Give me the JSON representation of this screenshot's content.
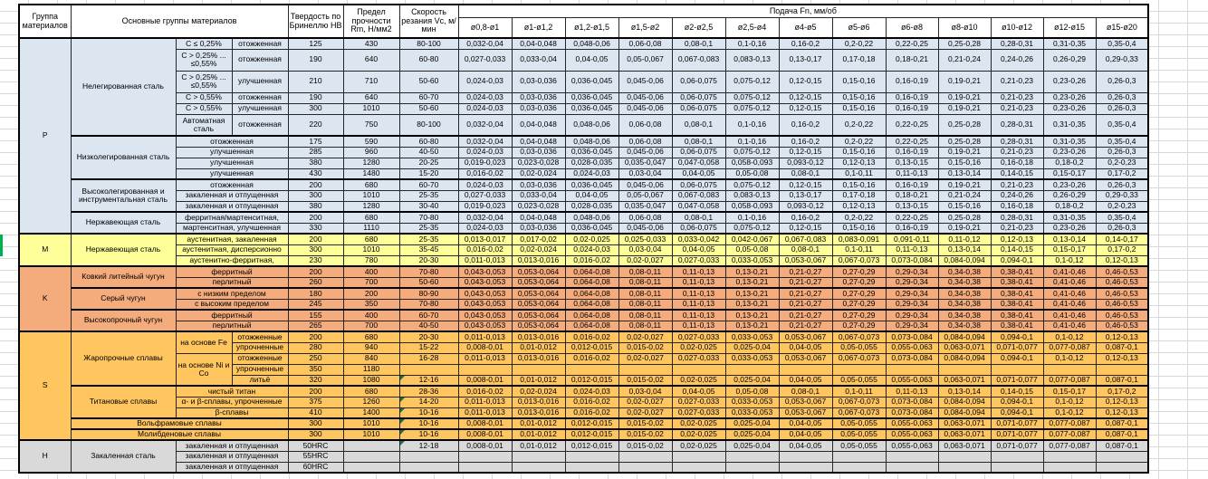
{
  "header": {
    "col_group": "Группа материалов",
    "col_main": "Основные группы материалов",
    "col_hardness": "Твердость по Бринеллю HB",
    "col_strength": "Предел прочности Rm, Н/мм2",
    "col_speed": "Скорость резания Vc, м/мин",
    "feed_title": "Подача Fn, мм/об",
    "feed_cols": [
      "ø0,8-ø1",
      "ø1-ø1,2",
      "ø1,2-ø1,5",
      "ø1,5-ø2",
      "ø2-ø2,5",
      "ø2,5-ø4",
      "ø4-ø5",
      "ø5-ø6",
      "ø6-ø8",
      "ø8-ø10",
      "ø10-ø12",
      "ø12-ø15",
      "ø15-ø20"
    ]
  },
  "colors": {
    "group_P": "#dce6f1",
    "group_M": "#ffff99",
    "group_K": "#f4ac7c",
    "group_S": "#ffc55f",
    "group_H": "#d9d9d9",
    "marker": "#1e7145",
    "indicator": "#00b050"
  },
  "feed_sets": {
    "A": [
      "0,032-0,04",
      "0,04-0,048",
      "0,048-0,06",
      "0,06-0,08",
      "0,08-0,1",
      "0,1-0,16",
      "0,16-0,2",
      "0,2-0,22",
      "0,22-0,25",
      "0,25-0,28",
      "0,28-0,31",
      "0,31-0,35",
      "0,35-0,4"
    ],
    "B": [
      "0,027-0,033",
      "0,033-0,04",
      "0,04-0,05",
      "0,05-0,067",
      "0,067-0,083",
      "0,083-0,13",
      "0,13-0,17",
      "0,17-0,18",
      "0,18-0,21",
      "0,21-0,24",
      "0,24-0,26",
      "0,26-0,29",
      "0,29-0,33"
    ],
    "C": [
      "0,024-0,03",
      "0,03-0,036",
      "0,036-0,045",
      "0,045-0,06",
      "0,06-0,075",
      "0,075-0,12",
      "0,12-0,15",
      "0,15-0,16",
      "0,16-0,19",
      "0,19-0,21",
      "0,21-0,23",
      "0,23-0,26",
      "0,26-0,3"
    ],
    "D": [
      "0,019-0,023",
      "0,023-0,028",
      "0,028-0,035",
      "0,035-0,047",
      "0,047-0,058",
      "0,058-0,093",
      "0,093-0,12",
      "0,12-0,13",
      "0,13-0,15",
      "0,15-0,16",
      "0,16-0,18",
      "0,18-0,2",
      "0,2-0,23"
    ],
    "E": [
      "0,016-0,02",
      "0,02-0,024",
      "0,024-0,03",
      "0,03-0,04",
      "0,04-0,05",
      "0,05-0,08",
      "0,08-0,1",
      "0,1-0,11",
      "0,11-0,13",
      "0,13-0,14",
      "0,14-0,15",
      "0,15-0,17",
      "0,17-0,2"
    ],
    "F": [
      "0,013-0,017",
      "0,017-0,02",
      "0,02-0,025",
      "0,025-0,033",
      "0,033-0,042",
      "0,042-0,067",
      "0,067-0,083",
      "0,083-0,091",
      "0,091-0,11",
      "0,11-0,12",
      "0,12-0,13",
      "0,13-0,14",
      "0,14-0,17"
    ],
    "G": [
      "0,011-0,013",
      "0,013-0,016",
      "0,016-0,02",
      "0,02-0,027",
      "0,027-0,033",
      "0,033-0,053",
      "0,053-0,067",
      "0,067-0,073",
      "0,073-0,084",
      "0,084-0,094",
      "0,094-0,1",
      "0,1-0,12",
      "0,12-0,13"
    ],
    "H": [
      "0,043-0,053",
      "0,053-0,064",
      "0,064-0,08",
      "0,08-0,11",
      "0,11-0,13",
      "0,13-0,21",
      "0,21-0,27",
      "0,27-0,29",
      "0,29-0,34",
      "0,34-0,38",
      "0,38-0,41",
      "0,41-0,46",
      "0,46-0,53"
    ],
    "I": [
      "0,008-0,01",
      "0,01-0,012",
      "0,012-0,015",
      "0,015-0,02",
      "0,02-0,025",
      "0,025-0,04",
      "0,04-0,05",
      "0,05-0,055",
      "0,055-0,063",
      "0,063-0,071",
      "0,071-0,077",
      "0,077-0,087",
      "0,087-0,1"
    ],
    "X": [
      "",
      "",
      "",
      "",
      "",
      "",
      "",
      "",
      "",
      "",
      "",
      "",
      ""
    ]
  },
  "rows": [
    {
      "g": "p",
      "c": [
        {
          "t": "P",
          "rs": 15,
          "n": "group-label-p"
        },
        {
          "t": "Нелегированная сталь",
          "rs": 6,
          "n": "material-group"
        },
        {
          "t": "C ≤ 0,25%"
        },
        {
          "t": "отожженная"
        },
        {
          "t": "125"
        },
        {
          "t": "430"
        },
        {
          "t": "80-100"
        }
      ],
      "f": "A"
    },
    {
      "g": "p",
      "h2": true,
      "c": [
        {
          "t": "C > 0,25% ...\n≤0,55%"
        },
        {
          "t": "отожженная"
        },
        {
          "t": "190"
        },
        {
          "t": "640"
        },
        {
          "t": "60-80"
        }
      ],
      "f": "B"
    },
    {
      "g": "p",
      "h2": true,
      "c": [
        {
          "t": "C > 0,25% ...\n≤0,55%"
        },
        {
          "t": "улучшенная"
        },
        {
          "t": "210"
        },
        {
          "t": "710"
        },
        {
          "t": "50-60"
        }
      ],
      "f": "C"
    },
    {
      "g": "p",
      "c": [
        {
          "t": "C > 0,55%"
        },
        {
          "t": "отожженная"
        },
        {
          "t": "190"
        },
        {
          "t": "640"
        },
        {
          "t": "60-70"
        }
      ],
      "f": "C"
    },
    {
      "g": "p",
      "c": [
        {
          "t": "C > 0,55%"
        },
        {
          "t": "улучшенная"
        },
        {
          "t": "300"
        },
        {
          "t": "1010"
        },
        {
          "t": "50-60"
        }
      ],
      "f": "C"
    },
    {
      "g": "p",
      "h2": true,
      "c": [
        {
          "t": "Автоматная сталь"
        },
        {
          "t": "отожженная"
        },
        {
          "t": "220"
        },
        {
          "t": "750"
        },
        {
          "t": "80-100"
        }
      ],
      "f": "A"
    },
    {
      "g": "p",
      "bt": true,
      "c": [
        {
          "t": "Низколегированная сталь",
          "rs": 4,
          "n": "material-group"
        },
        {
          "t": "отожженная",
          "cs": 2
        },
        {
          "t": "175"
        },
        {
          "t": "590"
        },
        {
          "t": "60-80"
        }
      ],
      "f": "A"
    },
    {
      "g": "p",
      "c": [
        {
          "t": "улучшенная",
          "cs": 2
        },
        {
          "t": "285"
        },
        {
          "t": "960"
        },
        {
          "t": "40-50"
        }
      ],
      "f": "C"
    },
    {
      "g": "p",
      "c": [
        {
          "t": "улучшенная",
          "cs": 2
        },
        {
          "t": "380"
        },
        {
          "t": "1280"
        },
        {
          "t": "20-25"
        }
      ],
      "f": "D"
    },
    {
      "g": "p",
      "c": [
        {
          "t": "улучшенная",
          "cs": 2
        },
        {
          "t": "430"
        },
        {
          "t": "1480"
        },
        {
          "t": "15-20"
        }
      ],
      "f": "E"
    },
    {
      "g": "p",
      "bt": true,
      "c": [
        {
          "t": "Высоколегированная и инструментальная сталь",
          "rs": 3,
          "n": "material-group"
        },
        {
          "t": "отожженная",
          "cs": 2
        },
        {
          "t": "200"
        },
        {
          "t": "680"
        },
        {
          "t": "60-70"
        }
      ],
      "f": "C"
    },
    {
      "g": "p",
      "c": [
        {
          "t": "закаленная и отпущенная",
          "cs": 2
        },
        {
          "t": "300"
        },
        {
          "t": "1010"
        },
        {
          "t": "25-35"
        }
      ],
      "f": "B"
    },
    {
      "g": "p",
      "c": [
        {
          "t": "закаленная и отпущенная",
          "cs": 2
        },
        {
          "t": "380"
        },
        {
          "t": "1280"
        },
        {
          "t": "30-40"
        }
      ],
      "f": "D"
    },
    {
      "g": "p",
      "bt": true,
      "c": [
        {
          "t": "Нержавеющая сталь",
          "rs": 2,
          "n": "material-group"
        },
        {
          "t": "ферритная/мартенситная,",
          "cs": 2
        },
        {
          "t": "200"
        },
        {
          "t": "680"
        },
        {
          "t": "70-80"
        }
      ],
      "f": "A"
    },
    {
      "g": "p",
      "c": [
        {
          "t": "мартенситная, улучшенная",
          "cs": 2
        },
        {
          "t": "330"
        },
        {
          "t": "1110"
        },
        {
          "t": "25-35"
        }
      ],
      "f": "C"
    },
    {
      "g": "m",
      "bt": true,
      "c": [
        {
          "t": "M",
          "rs": 3,
          "n": "group-label-m"
        },
        {
          "t": "Нержавеющая сталь",
          "rs": 3,
          "n": "material-group"
        },
        {
          "t": "аустенитная, закаленная",
          "cs": 2
        },
        {
          "t": "200"
        },
        {
          "t": "680"
        },
        {
          "t": "25-35"
        }
      ],
      "f": "F"
    },
    {
      "g": "m",
      "c": [
        {
          "t": "аустенитная, дисперсионно",
          "cs": 2
        },
        {
          "t": "300"
        },
        {
          "t": "1010"
        },
        {
          "t": "35-45"
        }
      ],
      "f": "E"
    },
    {
      "g": "m",
      "c": [
        {
          "t": "аустенитно-ферритная,",
          "cs": 2
        },
        {
          "t": "230"
        },
        {
          "t": "780"
        },
        {
          "t": "20-30"
        }
      ],
      "f": "G"
    },
    {
      "g": "k",
      "bt": true,
      "c": [
        {
          "t": "K",
          "rs": 6,
          "n": "group-label-k"
        },
        {
          "t": "Ковкий литейный чугун",
          "rs": 2,
          "n": "material-group"
        },
        {
          "t": "ферритный",
          "cs": 2
        },
        {
          "t": "200"
        },
        {
          "t": "400"
        },
        {
          "t": "70-80"
        }
      ],
      "f": "H"
    },
    {
      "g": "k",
      "c": [
        {
          "t": "перлитный",
          "cs": 2
        },
        {
          "t": "260"
        },
        {
          "t": "700"
        },
        {
          "t": "50-60"
        }
      ],
      "f": "H"
    },
    {
      "g": "k",
      "bt": true,
      "c": [
        {
          "t": "Серый чугун",
          "rs": 2,
          "n": "material-group"
        },
        {
          "t": "с низким пределом",
          "cs": 2
        },
        {
          "t": "180"
        },
        {
          "t": "200"
        },
        {
          "t": "80-90"
        }
      ],
      "f": "H"
    },
    {
      "g": "k",
      "c": [
        {
          "t": "с высоким пределом",
          "cs": 2
        },
        {
          "t": "245"
        },
        {
          "t": "350"
        },
        {
          "t": "70-80"
        }
      ],
      "f": "H"
    },
    {
      "g": "k",
      "bt": true,
      "c": [
        {
          "t": "Высокопрочный чугун",
          "rs": 2,
          "n": "material-group"
        },
        {
          "t": "ферритный",
          "cs": 2
        },
        {
          "t": "155"
        },
        {
          "t": "400"
        },
        {
          "t": "60-70"
        }
      ],
      "f": "H"
    },
    {
      "g": "k",
      "c": [
        {
          "t": "перлитный",
          "cs": 2
        },
        {
          "t": "265"
        },
        {
          "t": "700"
        },
        {
          "t": "40-50"
        }
      ],
      "f": "H"
    },
    {
      "g": "s",
      "bt": true,
      "c": [
        {
          "t": "S",
          "rs": 10,
          "n": "group-label-s"
        },
        {
          "t": "Жаропрочные сплавы",
          "rs": 5,
          "n": "material-group"
        },
        {
          "t": "на основе Fe",
          "rs": 2
        },
        {
          "t": "отожженные"
        },
        {
          "t": "200"
        },
        {
          "t": "680"
        },
        {
          "t": "20-30"
        }
      ],
      "f": "G"
    },
    {
      "g": "s",
      "c": [
        {
          "t": "упрочненные"
        },
        {
          "t": "280"
        },
        {
          "t": "940"
        },
        {
          "t": "15-22"
        }
      ],
      "f": "I"
    },
    {
      "g": "s",
      "c": [
        {
          "t": "на основе Ni и Со",
          "rs": 3
        },
        {
          "t": "отожженные"
        },
        {
          "t": "250"
        },
        {
          "t": "840"
        },
        {
          "t": "16-28"
        }
      ],
      "f": "G"
    },
    {
      "g": "s",
      "c": [
        {
          "t": "упрочненные"
        },
        {
          "t": "350"
        },
        {
          "t": "1180"
        },
        {
          "t": ""
        }
      ],
      "f": "X"
    },
    {
      "g": "s",
      "c": [
        {
          "t": "литьё"
        },
        {
          "t": "320"
        },
        {
          "t": "1080"
        },
        {
          "t": "12-16",
          "m": 1
        }
      ],
      "f": "I"
    },
    {
      "g": "s",
      "bt": true,
      "c": [
        {
          "t": "Титановые сплавы",
          "rs": 3,
          "n": "material-group"
        },
        {
          "t": "чистый титан",
          "cs": 2
        },
        {
          "t": "200"
        },
        {
          "t": "680"
        },
        {
          "t": "28-36"
        }
      ],
      "f": "E"
    },
    {
      "g": "s",
      "c": [
        {
          "t": "α- и β-сплавы, упрочненные",
          "cs": 2
        },
        {
          "t": "375"
        },
        {
          "t": "1260"
        },
        {
          "t": "14-20",
          "m": 1
        }
      ],
      "f": "G"
    },
    {
      "g": "s",
      "c": [
        {
          "t": "β-сплавы",
          "cs": 2
        },
        {
          "t": "410"
        },
        {
          "t": "1400"
        },
        {
          "t": "10-16",
          "m": 1
        }
      ],
      "f": "G"
    },
    {
      "g": "s",
      "bt": true,
      "c": [
        {
          "t": "Вольфрамовые сплавы",
          "cs": 3,
          "n": "material-group"
        },
        {
          "t": "300"
        },
        {
          "t": "1010"
        },
        {
          "t": "10-16",
          "m": 1
        }
      ],
      "f": "I"
    },
    {
      "g": "s",
      "bt": true,
      "c": [
        {
          "t": "Молибденовые сплавы",
          "cs": 3,
          "n": "material-group"
        },
        {
          "t": "300"
        },
        {
          "t": "1010"
        },
        {
          "t": "10-16",
          "m": 1
        }
      ],
      "f": "I"
    },
    {
      "g": "hh",
      "bt": true,
      "c": [
        {
          "t": "H",
          "rs": 3,
          "n": "group-label-h"
        },
        {
          "t": "Закаленная сталь",
          "rs": 3,
          "n": "material-group"
        },
        {
          "t": "закаленная и отпущенная",
          "cs": 2
        },
        {
          "t": "50HRC"
        },
        {
          "t": ""
        },
        {
          "t": "12-18",
          "m": 1
        }
      ],
      "f": "I"
    },
    {
      "g": "hh",
      "c": [
        {
          "t": "закаленная и отпущенная",
          "cs": 2
        },
        {
          "t": "55HRC"
        },
        {
          "t": ""
        },
        {
          "t": ""
        }
      ],
      "f": "X"
    },
    {
      "g": "hh",
      "c": [
        {
          "t": "закаленная и отпущенная",
          "cs": 2
        },
        {
          "t": "60HRC"
        },
        {
          "t": ""
        },
        {
          "t": ""
        }
      ],
      "f": "X"
    }
  ]
}
